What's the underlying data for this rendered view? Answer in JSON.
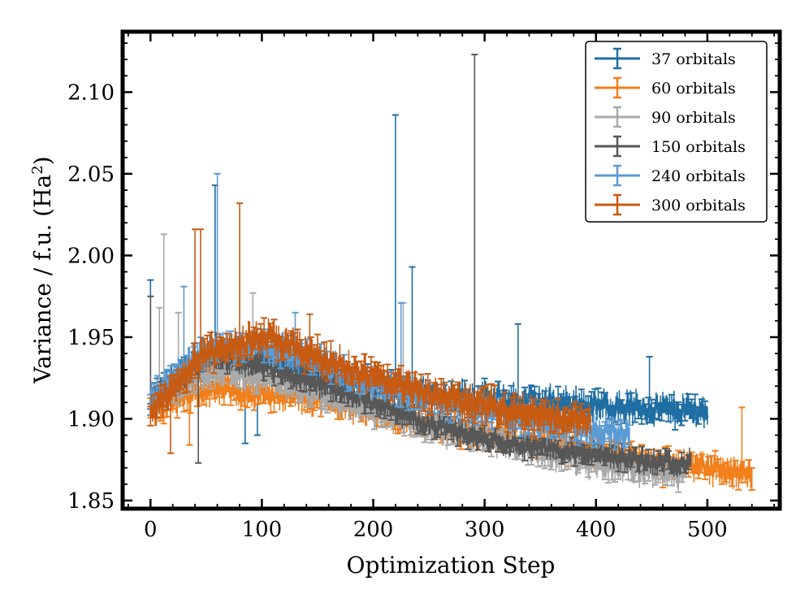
{
  "chart_data": {
    "type": "line",
    "title": "",
    "xlabel": "Optimization Step",
    "ylabel_text": "Variance / f.u. (Ha",
    "ylabel_sup": "2",
    "ylabel_close": ")",
    "xlim": [
      -25,
      565
    ],
    "ylim": [
      1.845,
      2.137
    ],
    "xticks": [
      {
        "value": 0,
        "label": "0"
      },
      {
        "value": 100,
        "label": "100"
      },
      {
        "value": 200,
        "label": "200"
      },
      {
        "value": 300,
        "label": "300"
      },
      {
        "value": 400,
        "label": "400"
      },
      {
        "value": 500,
        "label": "500"
      }
    ],
    "yticks": [
      {
        "value": 1.85,
        "label": "1.85"
      },
      {
        "value": 1.9,
        "label": "1.90"
      },
      {
        "value": 1.95,
        "label": "1.95"
      },
      {
        "value": 2.0,
        "label": "2.00"
      },
      {
        "value": 2.05,
        "label": "2.05"
      },
      {
        "value": 2.1,
        "label": "2.10"
      }
    ],
    "grid": false,
    "legend_position": "top-right",
    "series": [
      {
        "name": "37 orbitals",
        "color": "#1f6ea4",
        "start": 0,
        "end": 500,
        "points": [
          [
            0,
            1.91
          ],
          [
            30,
            1.928
          ],
          [
            60,
            1.935
          ],
          [
            100,
            1.937
          ],
          [
            150,
            1.928
          ],
          [
            200,
            1.92
          ],
          [
            250,
            1.915
          ],
          [
            300,
            1.912
          ],
          [
            350,
            1.91
          ],
          [
            400,
            1.908
          ],
          [
            450,
            1.906
          ],
          [
            500,
            1.905
          ]
        ],
        "noise": 0.006,
        "err": 0.006,
        "spikes": [
          [
            0,
            1.985
          ],
          [
            58,
            2.043
          ],
          [
            85,
            1.885
          ],
          [
            96,
            1.89
          ],
          [
            220,
            2.086
          ],
          [
            235,
            1.993
          ],
          [
            330,
            1.958
          ],
          [
            448,
            1.938
          ]
        ]
      },
      {
        "name": "60 orbitals",
        "color": "#f07f1c",
        "start": 0,
        "end": 540,
        "points": [
          [
            0,
            1.905
          ],
          [
            50,
            1.918
          ],
          [
            100,
            1.915
          ],
          [
            150,
            1.912
          ],
          [
            200,
            1.905
          ],
          [
            250,
            1.897
          ],
          [
            300,
            1.89
          ],
          [
            350,
            1.885
          ],
          [
            400,
            1.88
          ],
          [
            450,
            1.874
          ],
          [
            500,
            1.87
          ],
          [
            540,
            1.866
          ]
        ],
        "noise": 0.005,
        "err": 0.006,
        "spikes": [
          [
            35,
            1.884
          ],
          [
            531,
            1.907
          ],
          [
            460,
            1.858
          ]
        ]
      },
      {
        "name": "90 orbitals",
        "color": "#a9a9a9",
        "start": 0,
        "end": 480,
        "points": [
          [
            0,
            1.91
          ],
          [
            50,
            1.93
          ],
          [
            100,
            1.925
          ],
          [
            150,
            1.915
          ],
          [
            200,
            1.905
          ],
          [
            250,
            1.895
          ],
          [
            300,
            1.888
          ],
          [
            350,
            1.88
          ],
          [
            400,
            1.873
          ],
          [
            450,
            1.868
          ],
          [
            480,
            1.866
          ]
        ],
        "noise": 0.005,
        "err": 0.006,
        "spikes": [
          [
            12,
            2.013
          ],
          [
            8,
            1.968
          ],
          [
            25,
            1.965
          ],
          [
            227,
            1.971
          ],
          [
            92,
            1.977
          ]
        ]
      },
      {
        "name": "150 orbitals",
        "color": "#575757",
        "start": 0,
        "end": 485,
        "points": [
          [
            0,
            1.91
          ],
          [
            50,
            1.94
          ],
          [
            100,
            1.932
          ],
          [
            150,
            1.922
          ],
          [
            200,
            1.91
          ],
          [
            250,
            1.897
          ],
          [
            300,
            1.888
          ],
          [
            350,
            1.882
          ],
          [
            400,
            1.878
          ],
          [
            450,
            1.874
          ],
          [
            485,
            1.873
          ]
        ],
        "noise": 0.004,
        "err": 0.005,
        "spikes": [
          [
            0,
            1.975
          ],
          [
            43,
            1.873
          ],
          [
            291,
            2.123
          ]
        ]
      },
      {
        "name": "240 orbitals",
        "color": "#5a9bd4",
        "start": 0,
        "end": 430,
        "points": [
          [
            0,
            1.912
          ],
          [
            50,
            1.942
          ],
          [
            100,
            1.945
          ],
          [
            150,
            1.935
          ],
          [
            200,
            1.922
          ],
          [
            250,
            1.913
          ],
          [
            300,
            1.905
          ],
          [
            350,
            1.898
          ],
          [
            400,
            1.893
          ],
          [
            430,
            1.89
          ]
        ],
        "noise": 0.006,
        "err": 0.006,
        "spikes": [
          [
            60,
            2.05
          ],
          [
            30,
            1.981
          ],
          [
            225,
            1.971
          ],
          [
            130,
            1.965
          ]
        ]
      },
      {
        "name": "300 orbitals",
        "color": "#c75b12",
        "start": 0,
        "end": 395,
        "points": [
          [
            0,
            1.905
          ],
          [
            50,
            1.94
          ],
          [
            100,
            1.95
          ],
          [
            150,
            1.938
          ],
          [
            200,
            1.925
          ],
          [
            250,
            1.915
          ],
          [
            300,
            1.908
          ],
          [
            350,
            1.902
          ],
          [
            395,
            1.899
          ]
        ],
        "noise": 0.006,
        "err": 0.007,
        "spikes": [
          [
            40,
            2.016
          ],
          [
            45,
            2.016
          ],
          [
            80,
            2.032
          ],
          [
            18,
            1.879
          ],
          [
            143,
            1.964
          ]
        ]
      }
    ]
  }
}
